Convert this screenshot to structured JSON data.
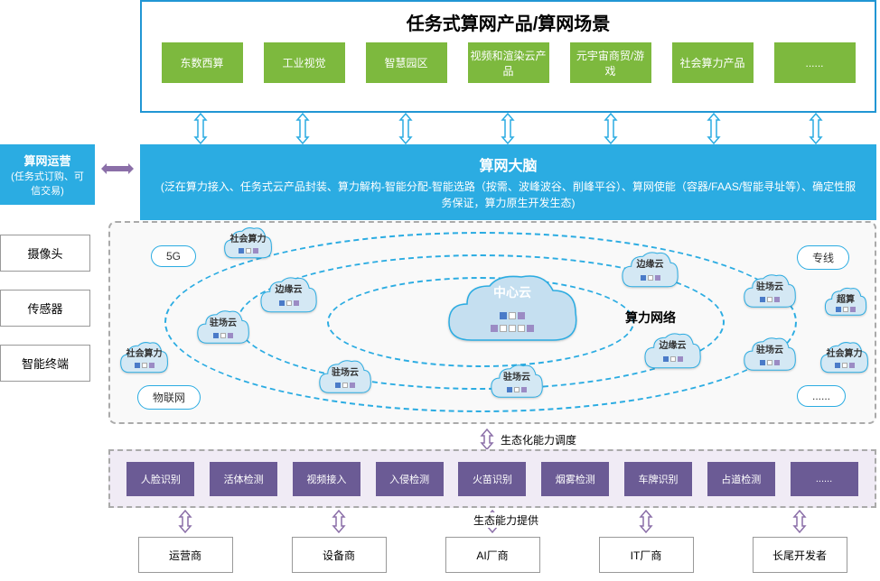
{
  "title": "任务式算网产品/算网场景",
  "scenarios": [
    "东数西算",
    "工业视觉",
    "智慧园区",
    "视频和渲染云产品",
    "元宇宙商贸/游戏",
    "社会算力产品",
    "......"
  ],
  "brain": {
    "title": "算网大脑",
    "desc": "(泛在算力接入、任务式云产品封装、算力解构-智能分配-智能选路（按需、波峰波谷、削峰平谷）、算网使能（容器/FAAS/智能寻址等）、确定性服务保证，算力原生开发生态)"
  },
  "ops": {
    "title": "算网运营",
    "sub": "(任务式订购、可信交易)"
  },
  "sides": [
    "摄像头",
    "传感器",
    "智能终端"
  ],
  "network": {
    "label": "算力网络",
    "pills": {
      "g5": "5G",
      "iot": "物联网",
      "line": "专线",
      "dots": "......"
    },
    "center": "中心云",
    "clouds": {
      "edge": "边缘云",
      "site": "驻场云",
      "social": "社会算力",
      "super": "超算"
    }
  },
  "eco1": "生态化能力调度",
  "capabilities": [
    "人脸识别",
    "活体检测",
    "视频接入",
    "入侵检测",
    "火苗识别",
    "烟雾检测",
    "车牌识别",
    "占道检测",
    "......"
  ],
  "eco2": "生态能力提供",
  "vendors": [
    "运营商",
    "设备商",
    "AI厂商",
    "IT厂商",
    "长尾开发者"
  ],
  "colors": {
    "green": "#7db93e",
    "cyan": "#2bace2",
    "purple": "#6b5b95",
    "purpleArrow": "#8b6fa8",
    "cloudFill": "#d4e8f4",
    "cloudStroke": "#2bace2",
    "cube1": "#4a7bc8",
    "cube2": "#9b8bc4",
    "cube3": "#fff"
  }
}
